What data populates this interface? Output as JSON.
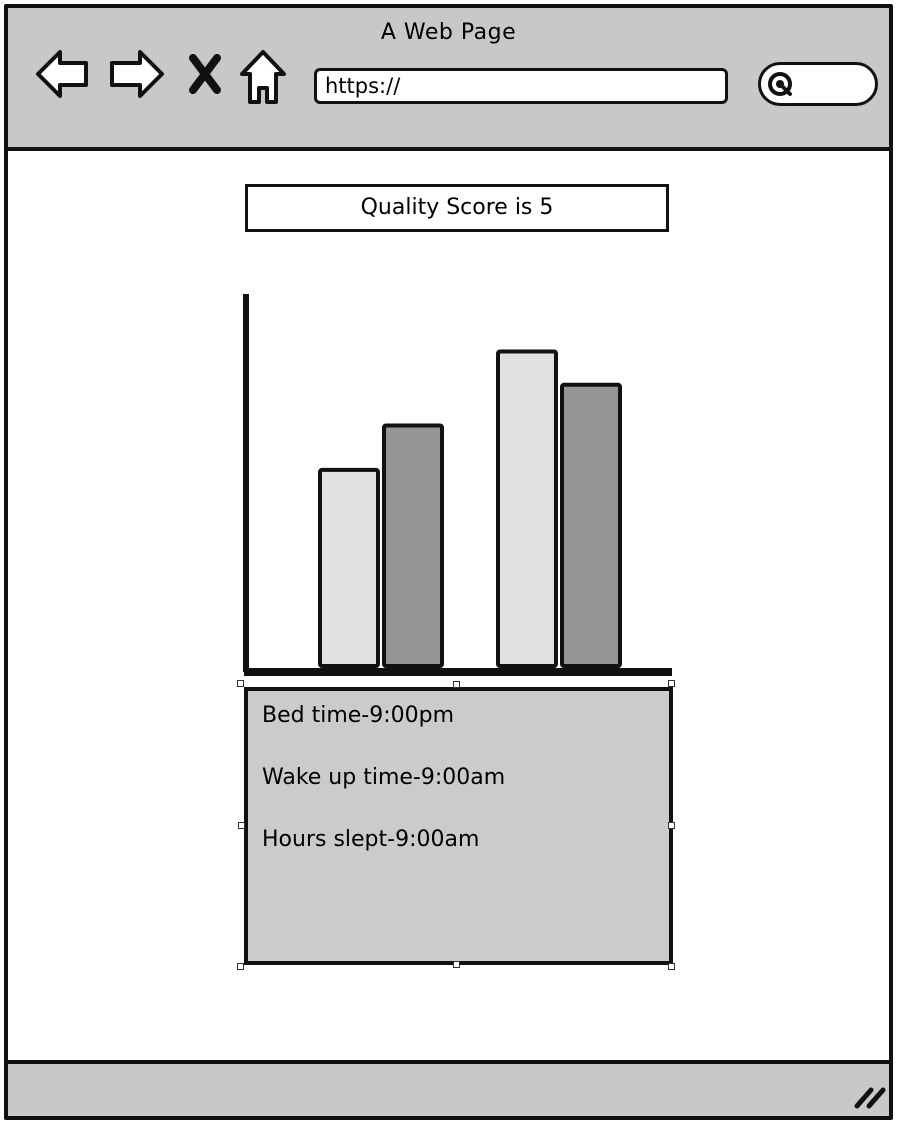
{
  "window": {
    "title": "A Web Page"
  },
  "toolbar": {
    "back_icon": "arrow-left-icon",
    "forward_icon": "arrow-right-icon",
    "stop_icon": "close-icon",
    "home_icon": "home-icon",
    "url": "https://",
    "search_icon": "search-icon"
  },
  "main": {
    "score_label": "Quality Score is 5",
    "info": {
      "bed_time": "Bed time-9:00pm",
      "wake_time": "Wake up time-9:00am",
      "hours_slept": "Hours slept-9:00am"
    }
  },
  "chart_data": {
    "type": "bar",
    "title": "",
    "xlabel": "",
    "ylabel": "",
    "categories": [
      "",
      ""
    ],
    "series": [
      {
        "values": [
          53,
          85
        ],
        "color": "#e0e0e0"
      },
      {
        "values": [
          65,
          76
        ],
        "color": "#969696"
      }
    ],
    "ylim": [
      0,
      100
    ],
    "grid": false
  },
  "colors": {
    "chrome": "#c8c8c8",
    "panel": "#cbcbcb",
    "outline": "#111111"
  }
}
